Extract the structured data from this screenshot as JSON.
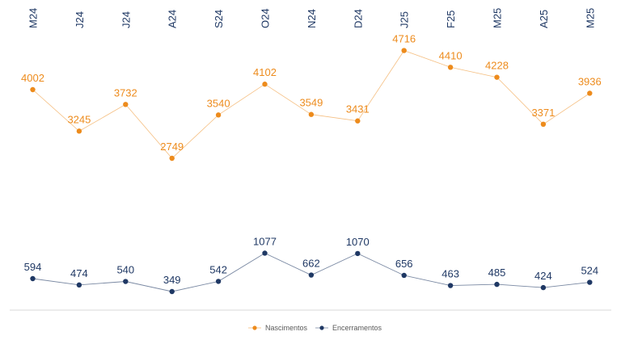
{
  "chart_data": {
    "type": "line",
    "categories": [
      "M24",
      "J24",
      "J24",
      "A24",
      "S24",
      "O24",
      "N24",
      "D24",
      "J25",
      "F25",
      "M25",
      "A25",
      "M25"
    ],
    "series": [
      {
        "name": "Nascimentos",
        "color": "#ed8b1c",
        "values": [
          4002,
          3245,
          3732,
          2749,
          3540,
          4102,
          3549,
          3431,
          4716,
          4410,
          4228,
          3371,
          3936
        ]
      },
      {
        "name": "Encerramentos",
        "color": "#1f3864",
        "values": [
          594,
          474,
          540,
          349,
          542,
          1077,
          662,
          1070,
          656,
          463,
          485,
          424,
          524
        ]
      }
    ],
    "title": "",
    "xlabel": "",
    "ylabel": "",
    "legend_position": "bottom",
    "grid": false
  }
}
